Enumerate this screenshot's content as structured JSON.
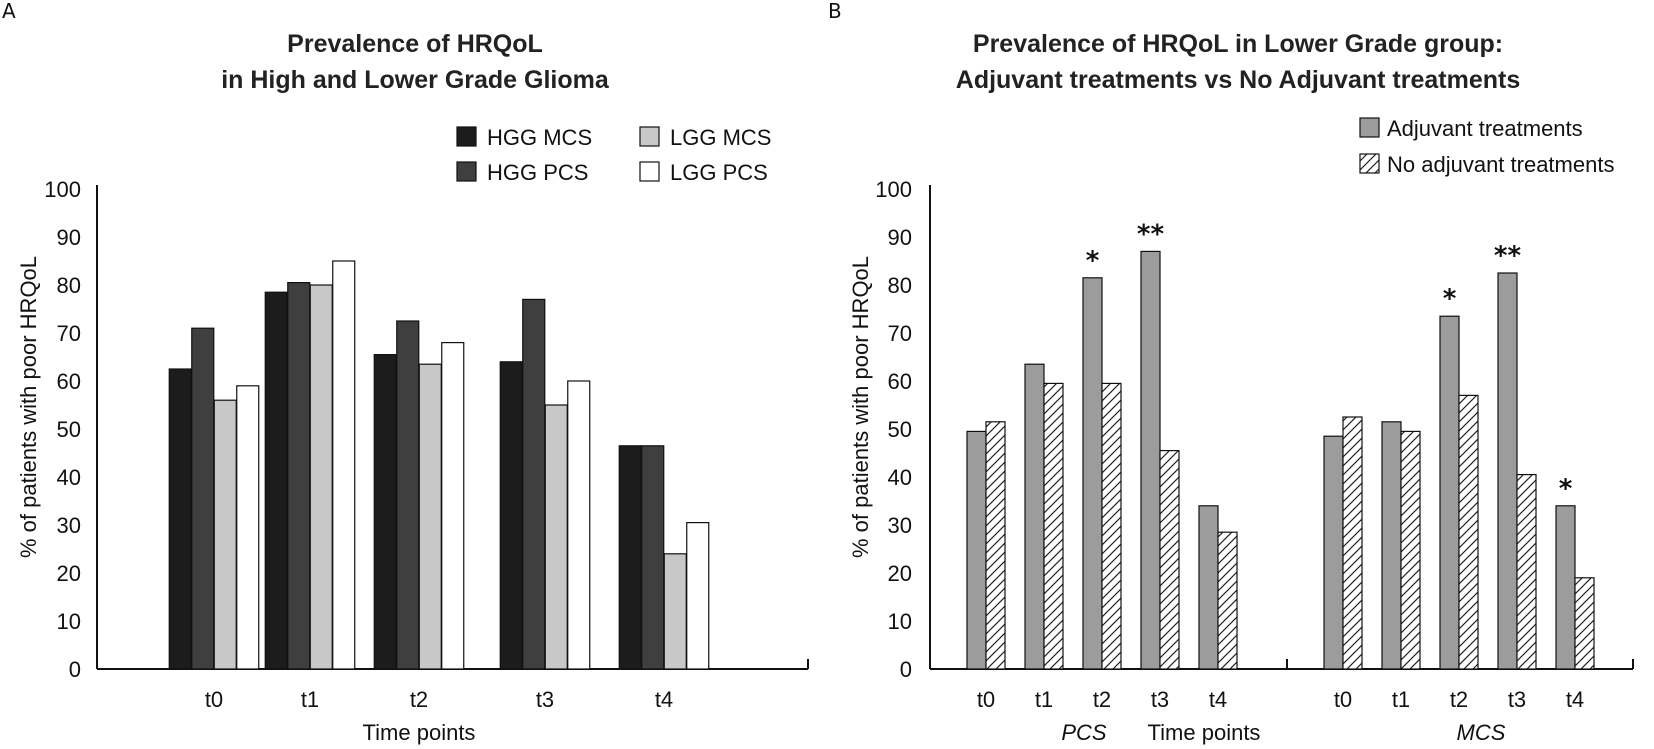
{
  "panel_a_letter": "A",
  "panel_b_letter": "B",
  "chart_data": [
    {
      "type": "bar",
      "title": [
        "Prevalence of HRQoL",
        "in High and Lower Grade Glioma"
      ],
      "xlabel": "Time points",
      "ylabel": "% of patients with poor HRQoL",
      "ylim": [
        0,
        100
      ],
      "yticks": [
        0,
        10,
        20,
        30,
        40,
        50,
        60,
        70,
        80,
        90,
        100
      ],
      "categories": [
        "t0",
        "t1",
        "t2",
        "t3",
        "t4"
      ],
      "legend": "top-right",
      "series": [
        {
          "name": "HGG MCS",
          "color": "#1c1c1c",
          "values": [
            62.5,
            78.5,
            65.5,
            64,
            46.5
          ]
        },
        {
          "name": "HGG PCS",
          "color": "#3f3f3f",
          "values": [
            71,
            80.5,
            72.5,
            77,
            46.5
          ]
        },
        {
          "name": "LGG MCS",
          "color": "#c8c8c8",
          "values": [
            56,
            80,
            63.5,
            55,
            24
          ]
        },
        {
          "name": "LGG PCS",
          "color": "#ffffff",
          "values": [
            59,
            85,
            68,
            60,
            30.5
          ]
        }
      ]
    },
    {
      "type": "bar",
      "title": [
        "Prevalence of HRQoL in Lower Grade group:",
        "Adjuvant treatments vs No Adjuvant treatments"
      ],
      "xlabel": "Time points",
      "ylabel": "% of patients with poor HRQoL",
      "ylim": [
        0,
        100
      ],
      "yticks": [
        0,
        10,
        20,
        30,
        40,
        50,
        60,
        70,
        80,
        90,
        100
      ],
      "legend": "top-right",
      "groups": [
        {
          "name": "PCS",
          "categories": [
            "t0",
            "t1",
            "t2",
            "t3",
            "t4"
          ],
          "series": [
            {
              "name": "Adjuvant treatments",
              "values": [
                49.5,
                63.5,
                81.5,
                87,
                34
              ],
              "stars": [
                "",
                "",
                "*",
                "**",
                ""
              ]
            },
            {
              "name": "No adjuvant treatments",
              "values": [
                51.5,
                59.5,
                59.5,
                45.5,
                28.5
              ]
            }
          ]
        },
        {
          "name": "MCS",
          "categories": [
            "t0",
            "t1",
            "t2",
            "t3",
            "t4"
          ],
          "series": [
            {
              "name": "Adjuvant treatments",
              "values": [
                48.5,
                51.5,
                73.5,
                82.5,
                34
              ],
              "stars": [
                "",
                "",
                "*",
                "**",
                "*"
              ]
            },
            {
              "name": "No adjuvant treatments",
              "values": [
                52.5,
                49.5,
                57,
                40.5,
                19
              ]
            }
          ]
        }
      ],
      "series_styles": [
        {
          "name": "Adjuvant treatments",
          "color": "#9c9c9c"
        },
        {
          "name": "No adjuvant treatments",
          "color": "#ffffff",
          "pattern": "hatch"
        }
      ]
    }
  ]
}
